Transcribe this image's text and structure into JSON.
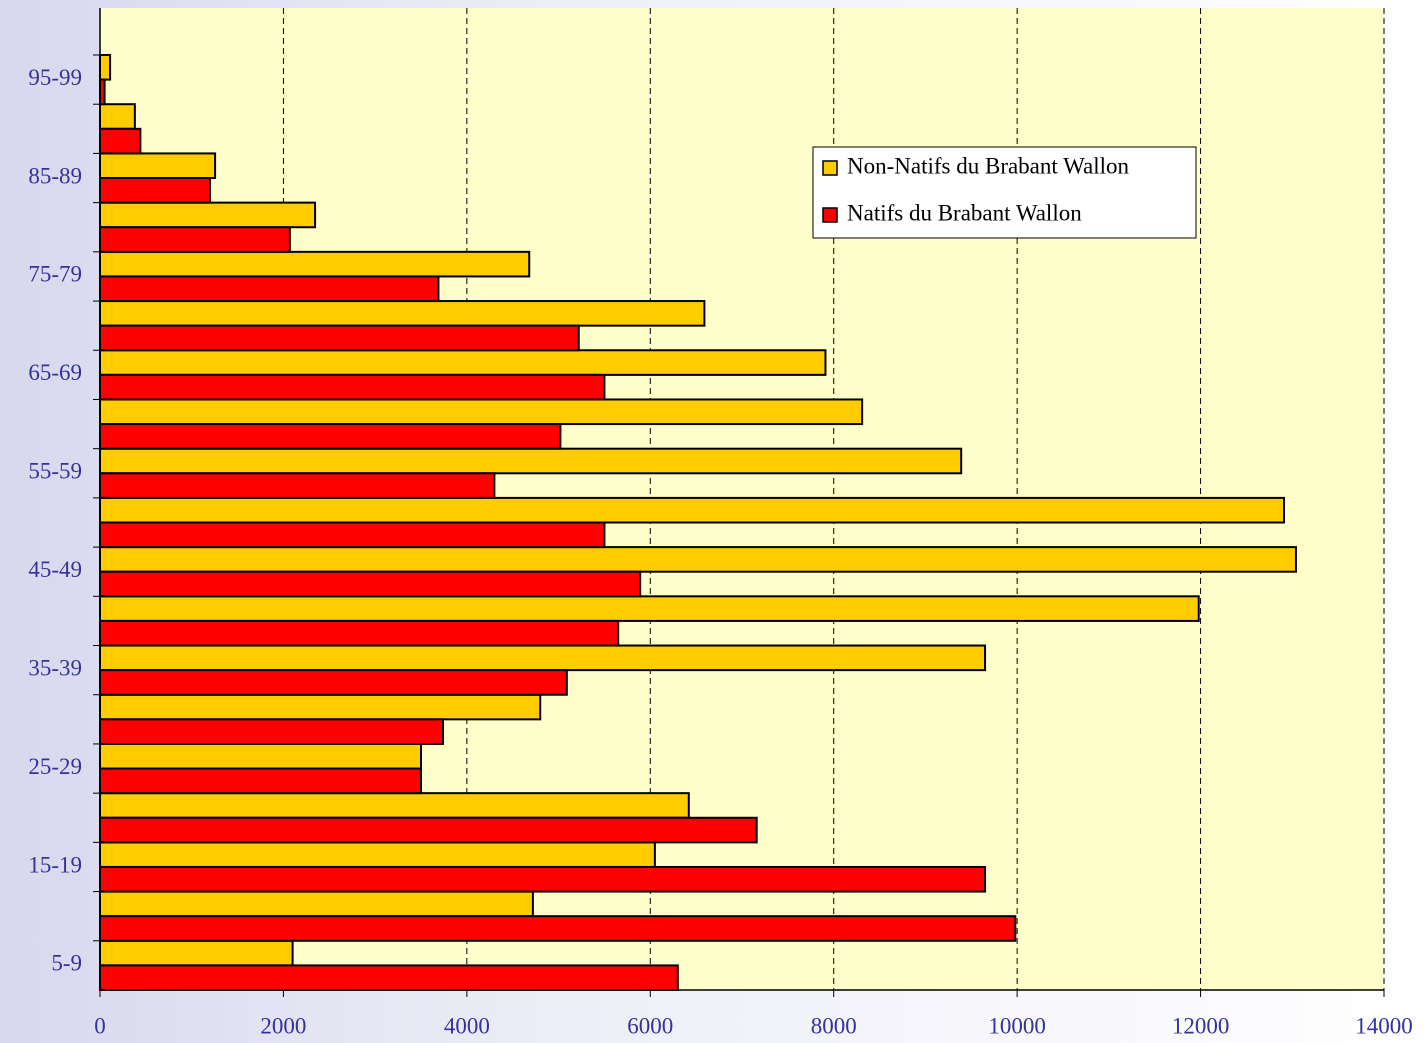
{
  "chart_data": {
    "type": "barh",
    "categories": [
      "5-9",
      null,
      "15-19",
      null,
      "25-29",
      null,
      "35-39",
      null,
      "45-49",
      null,
      "55-59",
      null,
      "65-69",
      null,
      "75-79",
      null,
      "85-89",
      null,
      "95-99"
    ],
    "series": [
      {
        "name": "Non-Natifs du Brabant Wallon",
        "color": "#ffcc00",
        "values": [
          2100,
          4720,
          6050,
          6420,
          3500,
          4800,
          9650,
          11980,
          13040,
          12910,
          9390,
          8310,
          7910,
          6590,
          4680,
          2345,
          1255,
          380,
          110
        ]
      },
      {
        "name": "Natifs du Brabant Wallon",
        "color": "#ff0000",
        "values": [
          6300,
          9980,
          9650,
          7160,
          3500,
          3740,
          5090,
          5650,
          5890,
          5500,
          4300,
          5020,
          5500,
          5220,
          3690,
          2070,
          1200,
          440,
          50
        ]
      }
    ],
    "xlim": [
      0,
      14000
    ],
    "xticks": [
      0,
      2000,
      4000,
      6000,
      8000,
      10000,
      12000,
      14000
    ],
    "grid": true,
    "legend": "upper right"
  }
}
